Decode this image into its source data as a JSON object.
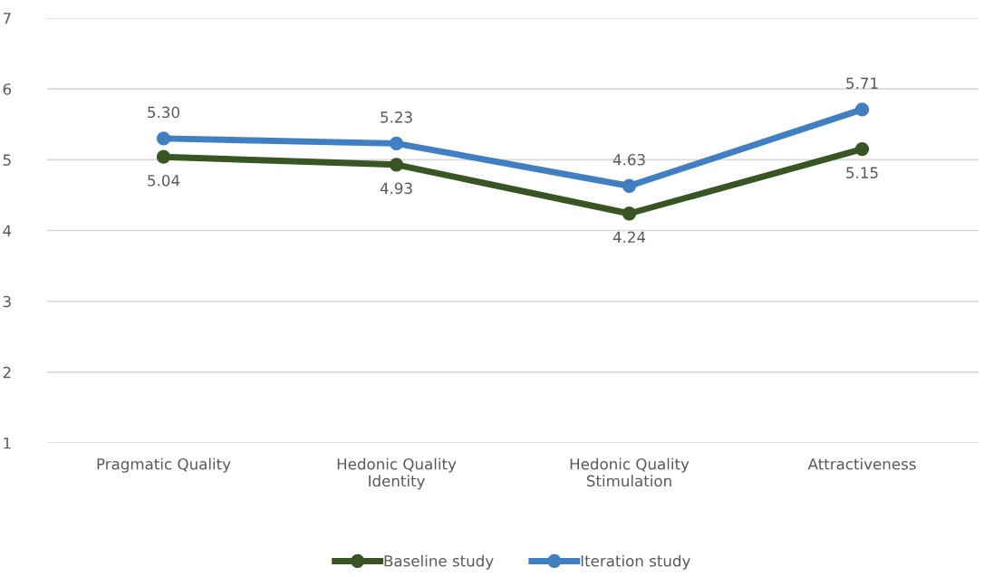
{
  "chart_data": {
    "type": "line",
    "categories": [
      "Pragmatic Quality",
      "Hedonic Quality\nIdentity",
      "Hedonic Quality\nStimulation",
      "Attractiveness"
    ],
    "series": [
      {
        "name": "Baseline study",
        "color": "#375623",
        "values": [
          5.04,
          4.93,
          4.24,
          5.15
        ],
        "value_labels": [
          "5.04",
          "4.93",
          "4.24",
          "5.15"
        ]
      },
      {
        "name": "Iteration study",
        "color": "#3f7fc2",
        "values": [
          5.3,
          5.23,
          4.63,
          5.71
        ],
        "value_labels": [
          "5.30",
          "5.23",
          "4.63",
          "5.71"
        ]
      }
    ],
    "ylim": [
      1,
      7
    ],
    "yticks": [
      1,
      2,
      3,
      4,
      5,
      6,
      7
    ],
    "grid": "y",
    "legend": "bottom",
    "marker": "circle",
    "line_style": "solid"
  }
}
